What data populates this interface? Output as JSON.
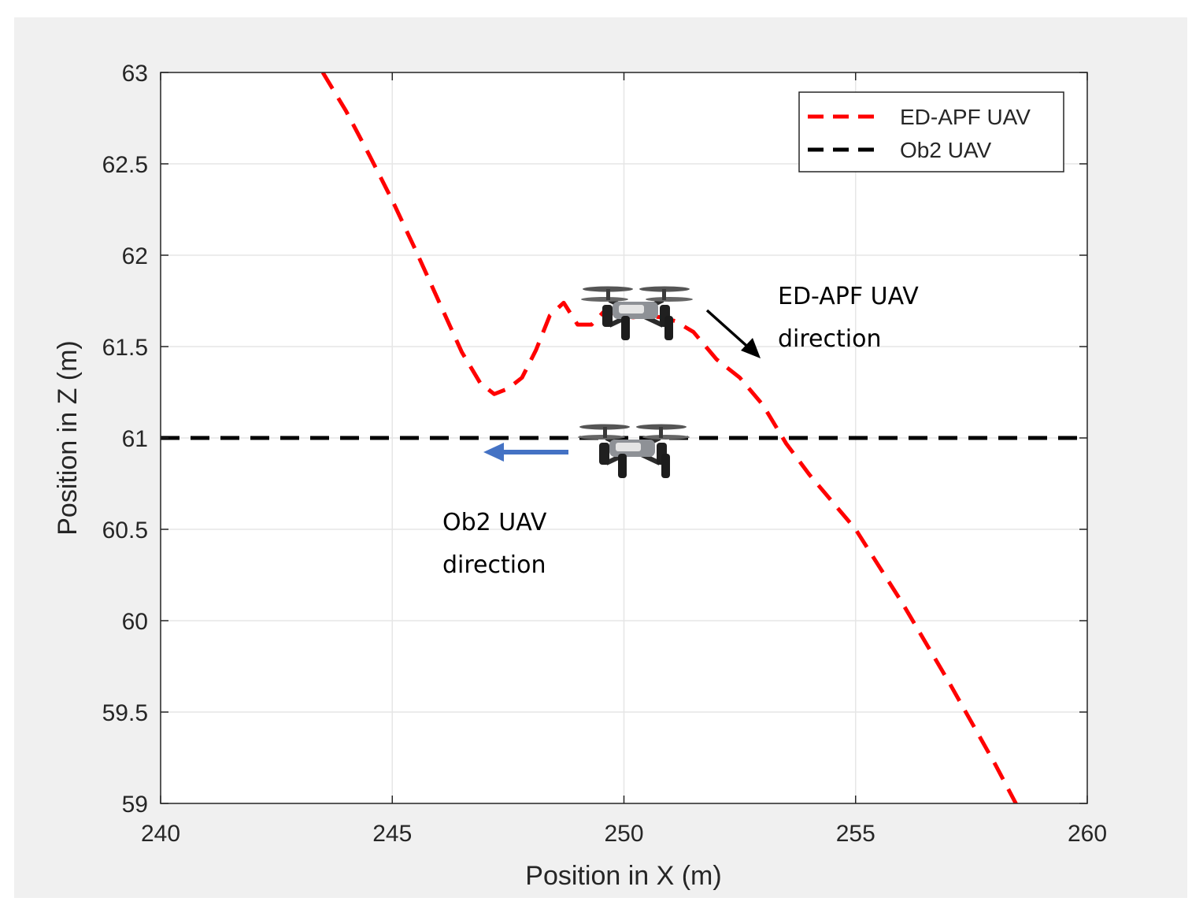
{
  "chart_data": {
    "type": "line",
    "title": "",
    "xlabel": "Position in X (m)",
    "ylabel": "Position in Z (m)",
    "xlim": [
      240,
      260
    ],
    "ylim": [
      59,
      63
    ],
    "xticks": [
      240,
      245,
      250,
      255,
      260
    ],
    "yticks": [
      59,
      59.5,
      60,
      60.5,
      61,
      61.5,
      62,
      62.5,
      63
    ],
    "xtick_labels": [
      "240",
      "245",
      "250",
      "255",
      "260"
    ],
    "ytick_labels": [
      "59",
      "59.5",
      "60",
      "60.5",
      "61",
      "61.5",
      "62",
      "62.5",
      "63"
    ],
    "grid": true,
    "legend_position": "top-right",
    "series": [
      {
        "name": "ED-APF UAV",
        "color": "#ff0000",
        "line_style": "dashed",
        "x": [
          243.5,
          244.0,
          244.5,
          245.0,
          245.5,
          246.0,
          246.5,
          246.9,
          247.2,
          247.5,
          247.8,
          248.1,
          248.4,
          248.7,
          249.0,
          249.3,
          249.6,
          249.9,
          250.2,
          250.5,
          250.8,
          251.1,
          251.5,
          252.0,
          252.5,
          253.0,
          253.5,
          254.0,
          255.0,
          256.0,
          257.0,
          258.0,
          258.5
        ],
        "y": [
          63.0,
          62.79,
          62.55,
          62.3,
          62.03,
          61.75,
          61.47,
          61.3,
          61.24,
          61.27,
          61.33,
          61.48,
          61.67,
          61.74,
          61.62,
          61.62,
          61.7,
          61.67,
          61.66,
          61.67,
          61.66,
          61.64,
          61.58,
          61.43,
          61.33,
          61.18,
          60.97,
          60.8,
          60.5,
          60.1,
          59.67,
          59.22,
          58.98
        ]
      },
      {
        "name": "Ob2 UAV",
        "color": "#000000",
        "line_style": "dashed",
        "x": [
          240,
          260
        ],
        "y": [
          61,
          61
        ]
      }
    ],
    "annotations": [
      {
        "name": "ed-apf-direction",
        "lines": [
          "ED-APF UAV",
          "direction"
        ],
        "arrow_color": "#000000"
      },
      {
        "name": "ob2-direction",
        "lines": [
          "Ob2 UAV",
          "direction"
        ],
        "arrow_color": "#4472c4"
      }
    ]
  }
}
